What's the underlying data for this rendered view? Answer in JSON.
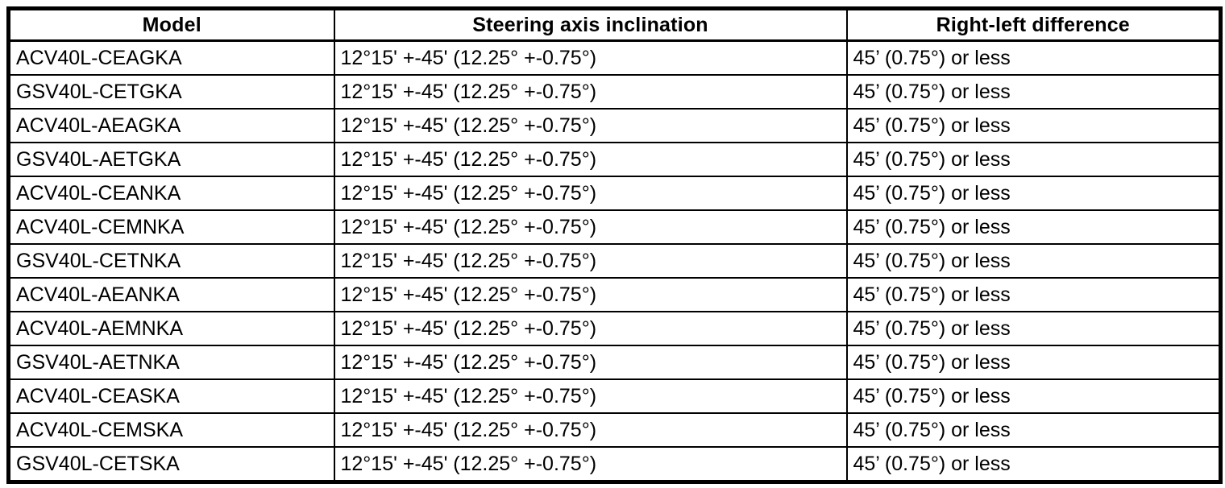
{
  "table": {
    "columns": [
      {
        "label": "Model"
      },
      {
        "label": "Steering axis inclination"
      },
      {
        "label": "Right-left difference"
      }
    ],
    "rows": [
      {
        "model": "ACV40L-CEAGKA",
        "inclination": "12°15' +-45' (12.25° +-0.75°)",
        "difference": "45’ (0.75°) or less"
      },
      {
        "model": "GSV40L-CETGKA",
        "inclination": "12°15' +-45' (12.25° +-0.75°)",
        "difference": "45’ (0.75°) or less"
      },
      {
        "model": "ACV40L-AEAGKA",
        "inclination": "12°15' +-45' (12.25° +-0.75°)",
        "difference": "45’ (0.75°) or less"
      },
      {
        "model": "GSV40L-AETGKA",
        "inclination": "12°15' +-45' (12.25° +-0.75°)",
        "difference": "45’ (0.75°) or less"
      },
      {
        "model": "ACV40L-CEANKA",
        "inclination": "12°15' +-45' (12.25° +-0.75°)",
        "difference": "45’ (0.75°) or less"
      },
      {
        "model": "ACV40L-CEMNKA",
        "inclination": "12°15' +-45' (12.25° +-0.75°)",
        "difference": "45’ (0.75°) or less"
      },
      {
        "model": "GSV40L-CETNKA",
        "inclination": "12°15' +-45' (12.25° +-0.75°)",
        "difference": "45’ (0.75°) or less"
      },
      {
        "model": "ACV40L-AEANKA",
        "inclination": "12°15' +-45' (12.25° +-0.75°)",
        "difference": "45’ (0.75°) or less"
      },
      {
        "model": "ACV40L-AEMNKA",
        "inclination": "12°15' +-45' (12.25° +-0.75°)",
        "difference": "45’ (0.75°) or less"
      },
      {
        "model": "GSV40L-AETNKA",
        "inclination": "12°15' +-45' (12.25° +-0.75°)",
        "difference": "45’ (0.75°) or less"
      },
      {
        "model": "ACV40L-CEASKA",
        "inclination": "12°15' +-45' (12.25° +-0.75°)",
        "difference": "45’ (0.75°) or less"
      },
      {
        "model": "ACV40L-CEMSKA",
        "inclination": "12°15' +-45' (12.25° +-0.75°)",
        "difference": "45’ (0.75°) or less"
      },
      {
        "model": "GSV40L-CETSKA",
        "inclination": "12°15' +-45' (12.25° +-0.75°)",
        "difference": "45’ (0.75°) or less"
      }
    ]
  }
}
